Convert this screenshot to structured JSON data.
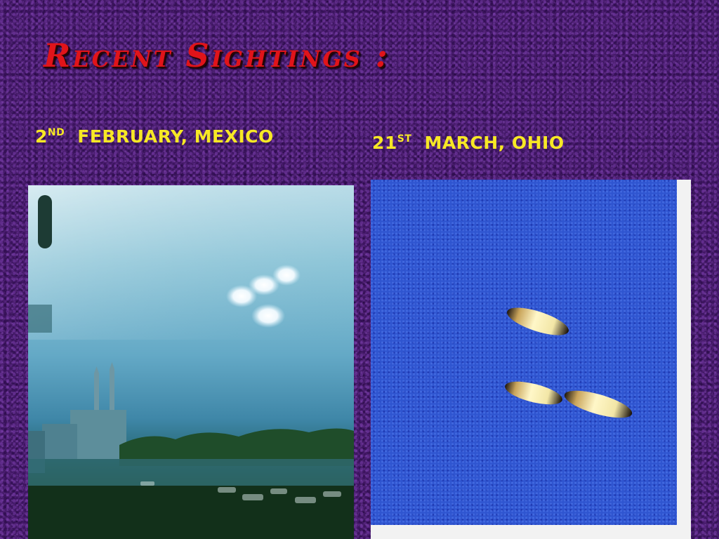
{
  "slide": {
    "title": "Recent  Sightings :",
    "sightings": [
      {
        "day": "2",
        "ordinal": "ND",
        "place": "FEBRUARY,  MEXICO"
      },
      {
        "day": "21",
        "ordinal": "ST",
        "place": "MARCH,  OHIO"
      }
    ]
  },
  "colors": {
    "background": "#4a1c6e",
    "title": "#e0141a",
    "caption": "#f7e825"
  }
}
